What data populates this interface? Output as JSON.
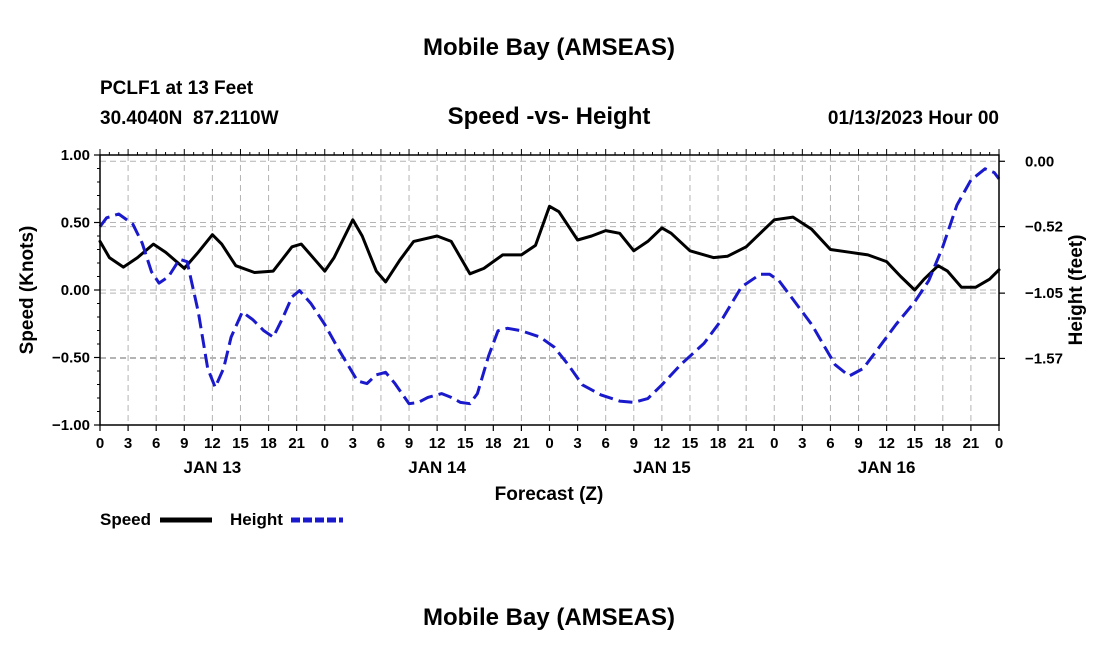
{
  "page": {
    "title": "Mobile Bay (AMSEAS)",
    "station_line1": "PCLF1 at 13 Feet",
    "station_line2": "30.4040N  87.2110W",
    "datetime": "01/13/2023 Hour 00",
    "footer_title": "Mobile Bay (AMSEAS)"
  },
  "colors": {
    "speed": "#000000",
    "height": "#1a1acc",
    "grid": "#b4b4b4",
    "axis": "#000000"
  },
  "chart_data": {
    "type": "line",
    "title": "Speed -vs- Height",
    "xlabel": "Forecast (Z)",
    "ylabel_left": "Speed (Knots)",
    "ylabel_right": "Height (feet)",
    "x_unit": "hours since 01/13/2023 00Z",
    "xlim": [
      0,
      96
    ],
    "ylim_left": [
      -1.0,
      1.0
    ],
    "ylim_right": [
      -2.1,
      0.05
    ],
    "left_ticks": [
      {
        "value": 1.0,
        "label": "1.00"
      },
      {
        "value": 0.5,
        "label": "0.50"
      },
      {
        "value": 0.0,
        "label": "0.00"
      },
      {
        "value": -0.5,
        "label": "−0.50"
      },
      {
        "value": -1.0,
        "label": "−1.00"
      }
    ],
    "right_ticks": [
      {
        "value": 0.0,
        "label": "0.00"
      },
      {
        "value": -0.52,
        "label": "−0.52"
      },
      {
        "value": -1.05,
        "label": "−1.05"
      },
      {
        "value": -1.57,
        "label": "−1.57"
      }
    ],
    "x_ticks": [
      {
        "value": 0,
        "label": "0"
      },
      {
        "value": 3,
        "label": "3"
      },
      {
        "value": 6,
        "label": "6"
      },
      {
        "value": 9,
        "label": "9"
      },
      {
        "value": 12,
        "label": "12"
      },
      {
        "value": 15,
        "label": "15"
      },
      {
        "value": 18,
        "label": "18"
      },
      {
        "value": 21,
        "label": "21"
      },
      {
        "value": 24,
        "label": "0"
      },
      {
        "value": 27,
        "label": "3"
      },
      {
        "value": 30,
        "label": "6"
      },
      {
        "value": 33,
        "label": "9"
      },
      {
        "value": 36,
        "label": "12"
      },
      {
        "value": 39,
        "label": "15"
      },
      {
        "value": 42,
        "label": "18"
      },
      {
        "value": 45,
        "label": "21"
      },
      {
        "value": 48,
        "label": "0"
      },
      {
        "value": 51,
        "label": "3"
      },
      {
        "value": 54,
        "label": "6"
      },
      {
        "value": 57,
        "label": "9"
      },
      {
        "value": 60,
        "label": "12"
      },
      {
        "value": 63,
        "label": "15"
      },
      {
        "value": 66,
        "label": "18"
      },
      {
        "value": 69,
        "label": "21"
      },
      {
        "value": 72,
        "label": "0"
      },
      {
        "value": 75,
        "label": "3"
      },
      {
        "value": 78,
        "label": "6"
      },
      {
        "value": 81,
        "label": "9"
      },
      {
        "value": 84,
        "label": "12"
      },
      {
        "value": 87,
        "label": "15"
      },
      {
        "value": 90,
        "label": "18"
      },
      {
        "value": 93,
        "label": "21"
      },
      {
        "value": 96,
        "label": "0"
      }
    ],
    "date_labels": [
      {
        "value": 12,
        "label": "JAN 13"
      },
      {
        "value": 36,
        "label": "JAN 14"
      },
      {
        "value": 60,
        "label": "JAN 15"
      },
      {
        "value": 84,
        "label": "JAN 16"
      }
    ],
    "series": [
      {
        "name": "Speed",
        "axis": "left",
        "style": "solid",
        "points": [
          [
            0,
            0.36
          ],
          [
            1,
            0.24
          ],
          [
            2.5,
            0.17
          ],
          [
            4,
            0.24
          ],
          [
            5.7,
            0.34
          ],
          [
            7,
            0.28
          ],
          [
            9,
            0.16
          ],
          [
            10.5,
            0.28
          ],
          [
            12,
            0.41
          ],
          [
            13,
            0.34
          ],
          [
            14.5,
            0.18
          ],
          [
            16.5,
            0.13
          ],
          [
            18.5,
            0.14
          ],
          [
            20.5,
            0.32
          ],
          [
            21.5,
            0.34
          ],
          [
            23,
            0.22
          ],
          [
            24,
            0.14
          ],
          [
            25,
            0.24
          ],
          [
            27,
            0.52
          ],
          [
            28,
            0.4
          ],
          [
            29.5,
            0.14
          ],
          [
            30.5,
            0.06
          ],
          [
            32,
            0.22
          ],
          [
            33.5,
            0.36
          ],
          [
            36,
            0.4
          ],
          [
            37.5,
            0.36
          ],
          [
            39.5,
            0.12
          ],
          [
            41,
            0.16
          ],
          [
            43,
            0.26
          ],
          [
            45,
            0.26
          ],
          [
            46.5,
            0.33
          ],
          [
            48,
            0.62
          ],
          [
            49,
            0.58
          ],
          [
            51,
            0.37
          ],
          [
            52.5,
            0.4
          ],
          [
            54,
            0.44
          ],
          [
            55.5,
            0.42
          ],
          [
            57,
            0.29
          ],
          [
            58.5,
            0.36
          ],
          [
            60,
            0.46
          ],
          [
            61,
            0.42
          ],
          [
            63,
            0.29
          ],
          [
            65.5,
            0.24
          ],
          [
            67,
            0.25
          ],
          [
            69,
            0.32
          ],
          [
            70.5,
            0.42
          ],
          [
            72,
            0.52
          ],
          [
            74,
            0.54
          ],
          [
            76,
            0.45
          ],
          [
            78,
            0.3
          ],
          [
            80,
            0.28
          ],
          [
            82,
            0.26
          ],
          [
            84,
            0.21
          ],
          [
            85.5,
            0.1
          ],
          [
            87,
            0.0
          ],
          [
            88,
            0.08
          ],
          [
            89.5,
            0.18
          ],
          [
            90.5,
            0.14
          ],
          [
            92,
            0.02
          ],
          [
            93.5,
            0.02
          ],
          [
            95,
            0.08
          ],
          [
            96,
            0.15
          ]
        ]
      },
      {
        "name": "Height",
        "axis": "right",
        "style": "dashed",
        "points": [
          [
            0,
            -0.52
          ],
          [
            0.7,
            -0.45
          ],
          [
            2,
            -0.42
          ],
          [
            3.5,
            -0.5
          ],
          [
            4.5,
            -0.65
          ],
          [
            5.5,
            -0.88
          ],
          [
            6.3,
            -0.97
          ],
          [
            7.3,
            -0.92
          ],
          [
            8.5,
            -0.78
          ],
          [
            9.3,
            -0.8
          ],
          [
            10.5,
            -1.2
          ],
          [
            11.5,
            -1.65
          ],
          [
            12.3,
            -1.8
          ],
          [
            13.2,
            -1.65
          ],
          [
            14,
            -1.4
          ],
          [
            15.2,
            -1.2
          ],
          [
            16.3,
            -1.26
          ],
          [
            17.5,
            -1.35
          ],
          [
            18.5,
            -1.4
          ],
          [
            19.5,
            -1.25
          ],
          [
            20.5,
            -1.08
          ],
          [
            21.3,
            -1.03
          ],
          [
            22.5,
            -1.13
          ],
          [
            24,
            -1.3
          ],
          [
            25.5,
            -1.5
          ],
          [
            27.5,
            -1.75
          ],
          [
            28.5,
            -1.77
          ],
          [
            29.5,
            -1.7
          ],
          [
            30.5,
            -1.68
          ],
          [
            31.5,
            -1.77
          ],
          [
            33,
            -1.93
          ],
          [
            34,
            -1.92
          ],
          [
            35,
            -1.88
          ],
          [
            36.5,
            -1.85
          ],
          [
            37.5,
            -1.88
          ],
          [
            38.5,
            -1.92
          ],
          [
            39.5,
            -1.93
          ],
          [
            40.3,
            -1.85
          ],
          [
            41.5,
            -1.55
          ],
          [
            42.5,
            -1.35
          ],
          [
            43.5,
            -1.33
          ],
          [
            45,
            -1.35
          ],
          [
            47,
            -1.4
          ],
          [
            48.5,
            -1.48
          ],
          [
            50,
            -1.62
          ],
          [
            51.5,
            -1.78
          ],
          [
            53.5,
            -1.86
          ],
          [
            55.5,
            -1.91
          ],
          [
            57,
            -1.92
          ],
          [
            58.5,
            -1.89
          ],
          [
            60,
            -1.78
          ],
          [
            62,
            -1.62
          ],
          [
            64.5,
            -1.45
          ],
          [
            66.5,
            -1.25
          ],
          [
            68.5,
            -1.0
          ],
          [
            70.5,
            -0.9
          ],
          [
            71.5,
            -0.9
          ],
          [
            72.5,
            -0.95
          ],
          [
            74,
            -1.1
          ],
          [
            76,
            -1.3
          ],
          [
            78.5,
            -1.62
          ],
          [
            80,
            -1.71
          ],
          [
            81.5,
            -1.65
          ],
          [
            83,
            -1.5
          ],
          [
            85,
            -1.3
          ],
          [
            87,
            -1.12
          ],
          [
            88.5,
            -0.95
          ],
          [
            90,
            -0.68
          ],
          [
            91.5,
            -0.35
          ],
          [
            93,
            -0.15
          ],
          [
            94.5,
            -0.06
          ],
          [
            95.5,
            -0.09
          ],
          [
            96,
            -0.14
          ]
        ]
      }
    ],
    "legend": [
      {
        "label": "Speed",
        "style": "solid"
      },
      {
        "label": "Height",
        "style": "dashed"
      }
    ]
  }
}
